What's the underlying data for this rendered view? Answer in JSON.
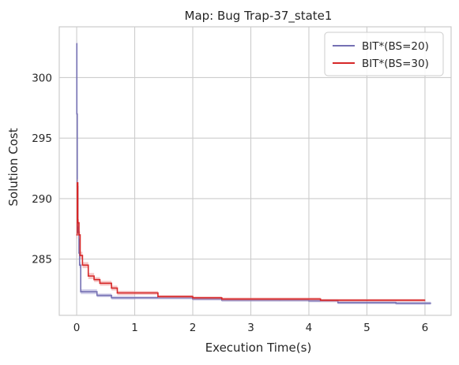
{
  "chart_data": {
    "type": "line",
    "title": "Map: Bug Trap-37_state1",
    "xlabel": "Execution Time(s)",
    "ylabel": "Solution Cost",
    "xlim": [
      -0.3,
      6.45
    ],
    "ylim": [
      280.35,
      304.2
    ],
    "xticks": [
      0,
      1,
      2,
      3,
      4,
      5,
      6
    ],
    "yticks": [
      285,
      290,
      295,
      300
    ],
    "grid": true,
    "legend_position": "top-right",
    "series": [
      {
        "name": "BIT*(BS=20)",
        "color": "#7570b3",
        "band_color": "#aaa6d6",
        "x": [
          0,
          0.003,
          0.01,
          0.02,
          0.03,
          0.04,
          0.05,
          0.07,
          0.1,
          0.35,
          0.6,
          1.0,
          1.5,
          2.0,
          2.5,
          3.0,
          3.5,
          4.0,
          4.5,
          5.0,
          5.5,
          6.1
        ],
        "y": [
          302.8,
          297.0,
          291.0,
          288.0,
          287.2,
          285.5,
          284.5,
          282.3,
          282.3,
          282.0,
          281.8,
          281.8,
          281.8,
          281.7,
          281.6,
          281.6,
          281.6,
          281.55,
          281.4,
          281.4,
          281.35,
          281.35
        ],
        "band": [
          0.25,
          0.25,
          0.25,
          0.25,
          0.25,
          0.25,
          0.25,
          0.2,
          0.2,
          0.15,
          0.15,
          0.12,
          0.12,
          0.12,
          0.12,
          0.12,
          0.12,
          0.12,
          0.12,
          0.12,
          0.12,
          0.12
        ]
      },
      {
        "name": "BIT*(BS=30)",
        "color": "#d62728",
        "band_color": "#ec9a9a",
        "x": [
          0,
          0.01,
          0.02,
          0.04,
          0.06,
          0.1,
          0.2,
          0.3,
          0.4,
          0.6,
          0.7,
          1.0,
          1.4,
          2.0,
          2.5,
          3.0,
          3.5,
          4.0,
          4.2,
          4.5,
          5.0,
          5.5,
          6.0
        ],
        "y": [
          287.0,
          291.3,
          288.0,
          287.0,
          285.3,
          284.5,
          283.6,
          283.3,
          283.0,
          282.6,
          282.2,
          282.2,
          281.9,
          281.8,
          281.7,
          281.7,
          281.7,
          281.7,
          281.6,
          281.6,
          281.6,
          281.6,
          281.6
        ],
        "band": [
          0.3,
          0.3,
          0.3,
          0.3,
          0.3,
          0.25,
          0.25,
          0.2,
          0.2,
          0.2,
          0.18,
          0.15,
          0.12,
          0.12,
          0.12,
          0.12,
          0.12,
          0.12,
          0.12,
          0.12,
          0.12,
          0.12,
          0.12
        ]
      }
    ]
  }
}
